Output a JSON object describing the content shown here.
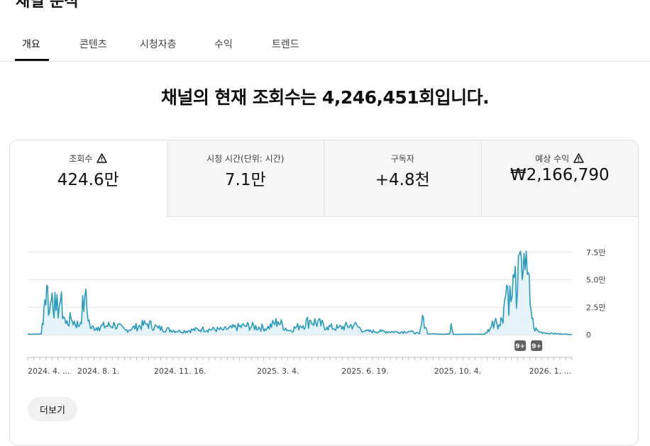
{
  "page": {
    "title": "채널 분석"
  },
  "tabs": [
    {
      "label": "개요",
      "active": true
    },
    {
      "label": "콘텐츠",
      "active": false
    },
    {
      "label": "시청자층",
      "active": false
    },
    {
      "label": "수익",
      "active": false
    },
    {
      "label": "트렌드",
      "active": false
    }
  ],
  "headline": "채널의 현재 조회수는 4,246,451회입니다.",
  "metrics": [
    {
      "label": "조회수",
      "value": "424.6만",
      "warning": true,
      "active": true
    },
    {
      "label": "시청 시간(단위: 시간)",
      "value": "7.1만",
      "warning": false,
      "active": false
    },
    {
      "label": "구독자",
      "value": "+4.8천",
      "warning": false,
      "active": false
    },
    {
      "label": "예상 수익",
      "value": "₩2,166,790",
      "warning": true,
      "active": false
    }
  ],
  "chart_data": {
    "type": "area",
    "y_ticks": [
      "0",
      "2.5만",
      "5.0만",
      "7.5만"
    ],
    "y_tick_values": [
      0,
      25000,
      50000,
      75000
    ],
    "ylim": [
      0,
      80000
    ],
    "x_tick_labels": [
      "2024. 4. ...",
      "2024. 8. 1.",
      "2024. 11. 16.",
      "2025. 3. 4.",
      "2025. 6. 19.",
      "2025. 10. 4.",
      "2026. 1. ..."
    ],
    "x_tick_positions": [
      0,
      0.13,
      0.28,
      0.46,
      0.62,
      0.79,
      0.96
    ],
    "series_color": "#2a9bbd",
    "fill_color": "#e3f3f8",
    "markers": [
      "9+",
      "9+"
    ],
    "marker_positions": [
      0.905,
      0.935
    ],
    "key_points": [
      [
        0.0,
        500
      ],
      [
        0.025,
        600
      ],
      [
        0.03,
        25000
      ],
      [
        0.035,
        45000
      ],
      [
        0.04,
        20000
      ],
      [
        0.045,
        38000
      ],
      [
        0.052,
        22000
      ],
      [
        0.06,
        30000
      ],
      [
        0.07,
        10000
      ],
      [
        0.08,
        14000
      ],
      [
        0.095,
        8000
      ],
      [
        0.105,
        35000
      ],
      [
        0.115,
        6000
      ],
      [
        0.13,
        7000
      ],
      [
        0.16,
        9000
      ],
      [
        0.18,
        4000
      ],
      [
        0.22,
        10000
      ],
      [
        0.24,
        6000
      ],
      [
        0.28,
        3000
      ],
      [
        0.32,
        5000
      ],
      [
        0.36,
        4500
      ],
      [
        0.4,
        8000
      ],
      [
        0.44,
        6000
      ],
      [
        0.46,
        12000
      ],
      [
        0.48,
        3500
      ],
      [
        0.5,
        8000
      ],
      [
        0.52,
        13000
      ],
      [
        0.55,
        7000
      ],
      [
        0.57,
        6000
      ],
      [
        0.6,
        9000
      ],
      [
        0.62,
        3000
      ],
      [
        0.65,
        3000
      ],
      [
        0.68,
        2500
      ],
      [
        0.7,
        3000
      ],
      [
        0.72,
        800
      ],
      [
        0.727,
        16000
      ],
      [
        0.735,
        800
      ],
      [
        0.76,
        600
      ],
      [
        0.775,
        500
      ],
      [
        0.778,
        10000
      ],
      [
        0.782,
        400
      ],
      [
        0.84,
        400
      ],
      [
        0.85,
        6000
      ],
      [
        0.86,
        15000
      ],
      [
        0.868,
        8000
      ],
      [
        0.875,
        26000
      ],
      [
        0.88,
        45000
      ],
      [
        0.888,
        30000
      ],
      [
        0.894,
        52000
      ],
      [
        0.9,
        40000
      ],
      [
        0.907,
        70000
      ],
      [
        0.912,
        74000
      ],
      [
        0.918,
        55000
      ],
      [
        0.925,
        22000
      ],
      [
        0.93,
        6000
      ],
      [
        0.94,
        2500
      ],
      [
        0.96,
        1200
      ],
      [
        0.99,
        400
      ],
      [
        1.0,
        300
      ]
    ]
  },
  "more_button": "더보기"
}
